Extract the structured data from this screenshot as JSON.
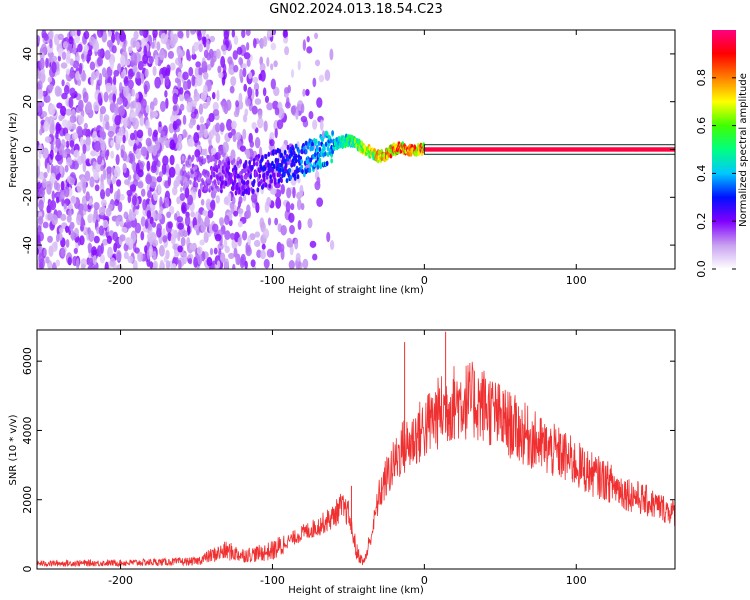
{
  "title": "GN02.2024.013.18.54.C23",
  "chart_data": [
    {
      "type": "heatmap",
      "xlabel": "Height of straight line (km)",
      "ylabel": "Frequency (Hz)",
      "xlim": [
        -255,
        165
      ],
      "ylim": [
        -50,
        50
      ],
      "xticks": [
        -200,
        -100,
        0,
        100
      ],
      "xtick_labels": [
        "-200",
        "-100",
        "0",
        "100"
      ],
      "yticks": [
        -40,
        -20,
        0,
        20,
        40
      ],
      "ytick_labels": [
        "-40",
        "-20",
        "0",
        "20",
        "40"
      ],
      "grid": false,
      "colorbar": {
        "label": "Normalized spectral amplitude",
        "range": [
          0,
          1
        ],
        "ticks": [
          0,
          0.2,
          0.4,
          0.6,
          0.8
        ],
        "tick_labels": [
          "0.0",
          "0.2",
          "0.4",
          "0.6",
          "0.8"
        ],
        "colormap": [
          "#ffffff",
          "#c8a0f0",
          "#8000ff",
          "#0010ff",
          "#00c8ff",
          "#00ff80",
          "#40ff00",
          "#ffff00",
          "#ff8000",
          "#ff0000",
          "#ff0080"
        ]
      },
      "ridge": {
        "x": [
          -160,
          -140,
          -120,
          -100,
          -90,
          -80,
          -70,
          -60,
          -50,
          -45,
          -40,
          -35,
          -30,
          -25,
          -20,
          -15,
          -10,
          -5,
          0,
          50,
          100,
          165
        ],
        "y": [
          -10,
          -10,
          -12,
          -8,
          -6,
          -5,
          -1,
          2,
          4,
          3,
          0,
          -1,
          -3,
          -2,
          0,
          1,
          0,
          0,
          0,
          0,
          0,
          0
        ],
        "amplitude": [
          0.15,
          0.2,
          0.25,
          0.3,
          0.35,
          0.4,
          0.45,
          0.5,
          0.6,
          0.7,
          0.75,
          0.8,
          0.85,
          0.9,
          0.95,
          0.95,
          0.9,
          0.95,
          0.95,
          0.95,
          0.95,
          0.95
        ]
      },
      "noise_region": {
        "x_range": [
          -255,
          -60
        ],
        "y_range": [
          -50,
          50
        ],
        "amplitude": [
          0.05,
          0.2
        ]
      }
    },
    {
      "type": "line",
      "xlabel": "Height of straight line (km)",
      "ylabel": "SNR (10 * v/v)",
      "xlim": [
        -255,
        165
      ],
      "ylim": [
        0,
        6900
      ],
      "xticks": [
        -200,
        -100,
        0,
        100
      ],
      "xtick_labels": [
        "-200",
        "-100",
        "0",
        "100"
      ],
      "yticks": [
        0,
        2000,
        4000,
        6000
      ],
      "ytick_labels": [
        "0",
        "2000",
        "4000",
        "6000"
      ],
      "grid": false,
      "series": [
        {
          "color": "#f03030",
          "x": [
            -255,
            -200,
            -150,
            -140,
            -130,
            -120,
            -110,
            -100,
            -90,
            -80,
            -70,
            -60,
            -55,
            -50,
            -45,
            -40,
            -35,
            -30,
            -25,
            -20,
            -15,
            -10,
            -5,
            0,
            10,
            20,
            30,
            40,
            50,
            60,
            70,
            80,
            90,
            100,
            110,
            120,
            130,
            140,
            150,
            165
          ],
          "y": [
            180,
            200,
            250,
            450,
            600,
            450,
            500,
            600,
            850,
            1100,
            1300,
            1600,
            1900,
            1700,
            600,
            200,
            1000,
            2200,
            2800,
            3200,
            3700,
            3800,
            4100,
            4300,
            4800,
            5100,
            5150,
            5000,
            4600,
            4300,
            4000,
            3700,
            3500,
            3200,
            2900,
            2700,
            2400,
            2200,
            2000,
            1700
          ]
        }
      ],
      "annotations": [
        {
          "x": -13,
          "y": 6550,
          "label": "spike"
        },
        {
          "x": 14,
          "y": 6850,
          "label": "spike"
        },
        {
          "x": -48,
          "y": 2400,
          "label": "spike"
        }
      ]
    }
  ]
}
